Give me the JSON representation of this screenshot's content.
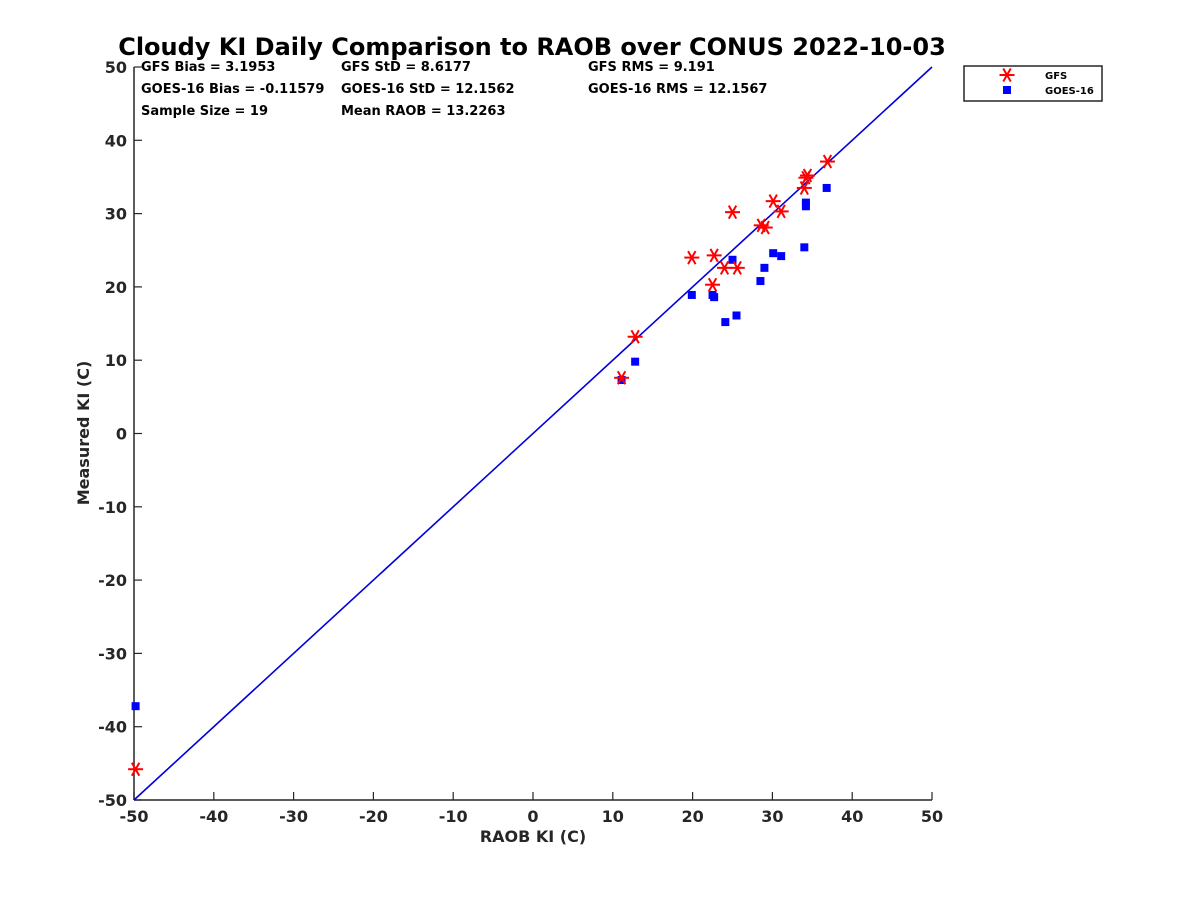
{
  "chart_data": {
    "type": "scatter",
    "title": "Cloudy KI Daily Comparison to RAOB over CONUS 2022-10-03",
    "xlabel": "RAOB KI (C)",
    "ylabel": "Measured KI (C)",
    "xlim": [
      -50,
      50
    ],
    "ylim": [
      -50,
      50
    ],
    "x_ticks": [
      -50,
      -40,
      -30,
      -20,
      -10,
      0,
      10,
      20,
      30,
      40,
      50
    ],
    "y_ticks": [
      -50,
      -40,
      -30,
      -20,
      -10,
      0,
      10,
      20,
      30,
      40,
      50
    ],
    "grid": false,
    "legend_position": "outside-top-right",
    "reference_line": {
      "x": [
        -50,
        50
      ],
      "y": [
        -50,
        50
      ],
      "color": "#0000dd"
    },
    "stats": [
      [
        "GFS Bias = 3.1953",
        "GFS StD = 8.6177",
        "GFS RMS = 9.191"
      ],
      [
        "GOES-16 Bias = -0.11579",
        "GOES-16 StD = 12.1562",
        "GOES-16 RMS = 12.1567"
      ],
      [
        "Sample Size = 19",
        "Mean RAOB = 13.2263",
        ""
      ]
    ],
    "series": [
      {
        "name": "GFS",
        "marker": "asterisk",
        "color": "#ff0000",
        "x": [
          -49.8,
          11.1,
          12.8,
          19.9,
          22.5,
          22.7,
          24.0,
          25.0,
          25.6,
          28.6,
          29.1,
          30.1,
          31.1,
          34.0,
          34.2,
          34.4,
          36.9
        ],
        "y": [
          -45.8,
          7.6,
          13.2,
          24.0,
          20.3,
          24.3,
          22.6,
          30.2,
          22.6,
          28.4,
          28.1,
          31.7,
          30.3,
          33.5,
          34.9,
          35.2,
          37.1
        ]
      },
      {
        "name": "GOES-16",
        "marker": "square",
        "color": "#0000ff",
        "x": [
          -49.8,
          11.1,
          12.8,
          19.9,
          22.5,
          22.7,
          24.1,
          25.0,
          25.5,
          28.5,
          29.0,
          30.1,
          31.1,
          34.0,
          34.2,
          34.2,
          36.8
        ],
        "y": [
          -37.2,
          7.3,
          9.8,
          18.9,
          18.9,
          18.6,
          15.2,
          23.7,
          16.1,
          20.8,
          22.6,
          24.6,
          24.2,
          25.4,
          31.0,
          31.5,
          33.5
        ]
      }
    ]
  }
}
